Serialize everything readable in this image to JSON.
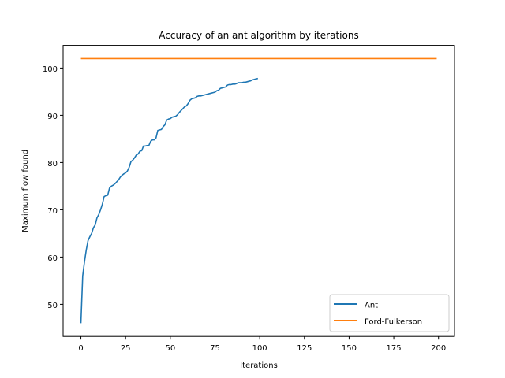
{
  "chart_data": {
    "type": "line",
    "title": "Accuracy of an ant algorithm by iterations",
    "xlabel": "Iterations",
    "ylabel": "Maximum flow found",
    "xlim": [
      -9.95,
      208.95
    ],
    "ylim": [
      43.2,
      104.8
    ],
    "xticks": [
      0,
      25,
      50,
      75,
      100,
      125,
      150,
      175,
      200
    ],
    "yticks": [
      50,
      60,
      70,
      80,
      90,
      100
    ],
    "grid": false,
    "legend_position": "lower right",
    "series": [
      {
        "name": "Ant",
        "color": "#1f77b4",
        "points": [
          [
            0,
            46.0
          ],
          [
            1,
            56.0
          ],
          [
            2,
            59.0
          ],
          [
            3,
            61.5
          ],
          [
            4,
            63.5
          ],
          [
            5,
            64.3
          ],
          [
            6,
            65.0
          ],
          [
            7,
            66.2
          ],
          [
            8,
            66.8
          ],
          [
            9,
            68.3
          ],
          [
            10,
            69.0
          ],
          [
            11,
            70.0
          ],
          [
            12,
            71.2
          ],
          [
            13,
            72.8
          ],
          [
            14,
            73.0
          ],
          [
            15,
            73.1
          ],
          [
            16,
            74.6
          ],
          [
            17,
            75.0
          ],
          [
            18,
            75.2
          ],
          [
            19,
            75.5
          ],
          [
            20,
            75.9
          ],
          [
            21,
            76.3
          ],
          [
            22,
            76.9
          ],
          [
            23,
            77.3
          ],
          [
            24,
            77.6
          ],
          [
            25,
            77.8
          ],
          [
            26,
            78.2
          ],
          [
            27,
            79.0
          ],
          [
            28,
            80.2
          ],
          [
            29,
            80.5
          ],
          [
            30,
            81.0
          ],
          [
            31,
            81.6
          ],
          [
            32,
            81.8
          ],
          [
            33,
            82.4
          ],
          [
            34,
            82.5
          ],
          [
            35,
            83.5
          ],
          [
            36,
            83.5
          ],
          [
            37,
            83.6
          ],
          [
            38,
            83.6
          ],
          [
            39,
            84.5
          ],
          [
            40,
            84.8
          ],
          [
            41,
            84.8
          ],
          [
            42,
            85.2
          ],
          [
            43,
            86.8
          ],
          [
            44,
            86.9
          ],
          [
            45,
            87.0
          ],
          [
            46,
            87.6
          ],
          [
            47,
            88.0
          ],
          [
            48,
            89.0
          ],
          [
            49,
            89.2
          ],
          [
            50,
            89.3
          ],
          [
            51,
            89.6
          ],
          [
            52,
            89.7
          ],
          [
            53,
            89.8
          ],
          [
            54,
            90.1
          ],
          [
            55,
            90.6
          ],
          [
            56,
            91.0
          ],
          [
            57,
            91.4
          ],
          [
            58,
            91.8
          ],
          [
            59,
            92.0
          ],
          [
            60,
            92.5
          ],
          [
            61,
            93.2
          ],
          [
            62,
            93.5
          ],
          [
            63,
            93.6
          ],
          [
            64,
            93.7
          ],
          [
            65,
            94.0
          ],
          [
            66,
            94.1
          ],
          [
            67,
            94.1
          ],
          [
            68,
            94.2
          ],
          [
            69,
            94.3
          ],
          [
            70,
            94.4
          ],
          [
            71,
            94.5
          ],
          [
            72,
            94.6
          ],
          [
            73,
            94.7
          ],
          [
            74,
            94.8
          ],
          [
            75,
            94.9
          ],
          [
            76,
            95.2
          ],
          [
            77,
            95.3
          ],
          [
            78,
            95.7
          ],
          [
            79,
            95.8
          ],
          [
            80,
            95.9
          ],
          [
            81,
            96.0
          ],
          [
            82,
            96.4
          ],
          [
            83,
            96.5
          ],
          [
            84,
            96.5
          ],
          [
            85,
            96.6
          ],
          [
            86,
            96.6
          ],
          [
            87,
            96.7
          ],
          [
            88,
            96.9
          ],
          [
            89,
            96.9
          ],
          [
            90,
            96.9
          ],
          [
            91,
            97.0
          ],
          [
            92,
            97.0
          ],
          [
            93,
            97.1
          ],
          [
            94,
            97.2
          ],
          [
            95,
            97.3
          ],
          [
            96,
            97.5
          ],
          [
            97,
            97.6
          ],
          [
            98,
            97.7
          ],
          [
            99,
            97.8
          ]
        ]
      },
      {
        "name": "Ford-Fulkerson",
        "color": "#ff7f0e",
        "points": [
          [
            0,
            102.0
          ],
          [
            199,
            102.0
          ]
        ]
      }
    ]
  }
}
